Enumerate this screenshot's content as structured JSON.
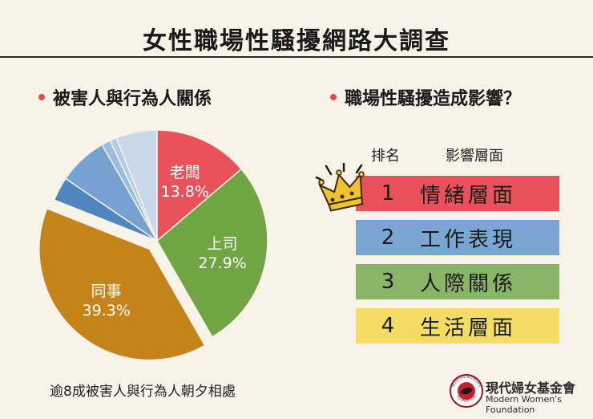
{
  "title": "女性職場性騷擾網路大調查",
  "left_section": {
    "heading": "被害人與行為人關係"
  },
  "right_section": {
    "heading": "職場性騷擾造成影響？",
    "col_rank": "排名",
    "col_impact": "影響層面",
    "rows": [
      {
        "rank": "1",
        "label": "情緒層面",
        "color": "#e9525a"
      },
      {
        "rank": "2",
        "label": "工作表現",
        "color": "#7aa6d3"
      },
      {
        "rank": "3",
        "label": "人際關係",
        "color": "#8ab566"
      },
      {
        "rank": "4",
        "label": "生活層面",
        "color": "#f5dd63"
      }
    ]
  },
  "chart_data": {
    "type": "pie",
    "title": "被害人與行為人關係",
    "slices": [
      {
        "label": "老闆",
        "value": 13.8,
        "value_label": "13.8%",
        "color": "#e9525a",
        "exploded": false,
        "labeled": true
      },
      {
        "label": "上司",
        "value": 27.9,
        "value_label": "27.9%",
        "color": "#70a544",
        "exploded": false,
        "labeled": true
      },
      {
        "label": "同事",
        "value": 39.3,
        "value_label": "39.3%",
        "color": "#c4841a",
        "exploded": true,
        "labeled": true
      },
      {
        "label": "",
        "value": 3.5,
        "value_label": "",
        "color": "#4f86bf",
        "exploded": false,
        "labeled": false
      },
      {
        "label": "",
        "value": 7.2,
        "value_label": "",
        "color": "#76a2d1",
        "exploded": false,
        "labeled": false
      },
      {
        "label": "",
        "value": 1.3,
        "value_label": "",
        "color": "#99bde0",
        "exploded": false,
        "labeled": false
      },
      {
        "label": "",
        "value": 1.0,
        "value_label": "",
        "color": "#b3cce6",
        "exploded": false,
        "labeled": false
      },
      {
        "label": "",
        "value": 6.0,
        "value_label": "",
        "color": "#c9d9ea",
        "exploded": false,
        "labeled": false
      }
    ]
  },
  "footer_note": "逾8成被害人與行為人朝夕相處",
  "logo": {
    "name": "現代婦女基金會",
    "english": "Modern Women's Foundation",
    "ring_top_text": "MODERN WOMEN'S",
    "ring_bottom_text": "FOUNDATION"
  },
  "colors": {
    "background": "#f8f3e8",
    "bullet": "#e54a4a"
  },
  "icons": {
    "crown": "crown-icon"
  }
}
